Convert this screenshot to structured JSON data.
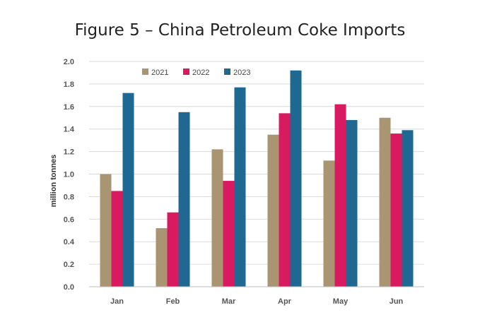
{
  "chart_data": {
    "type": "bar",
    "title": "Figure 5 – China Petroleum Coke Imports",
    "xlabel": "",
    "ylabel": "million tonnes",
    "ylim": [
      0,
      2.0
    ],
    "yticks": [
      "0.0",
      "0.2",
      "0.4",
      "0.6",
      "0.8",
      "1.0",
      "1.2",
      "1.4",
      "1.6",
      "1.8",
      "2.0"
    ],
    "grid": true,
    "legend_position": "top-left",
    "categories": [
      "Jan",
      "Feb",
      "Mar",
      "Apr",
      "May",
      "Jun"
    ],
    "series": [
      {
        "name": "2021",
        "color": "#a99572",
        "values": [
          1.0,
          0.52,
          1.22,
          1.35,
          1.12,
          1.5
        ]
      },
      {
        "name": "2022",
        "color": "#d81b60",
        "values": [
          0.85,
          0.66,
          0.94,
          1.54,
          1.62,
          1.36
        ]
      },
      {
        "name": "2023",
        "color": "#1f6891",
        "values": [
          1.72,
          1.55,
          1.77,
          1.92,
          1.48,
          1.39
        ]
      }
    ]
  }
}
